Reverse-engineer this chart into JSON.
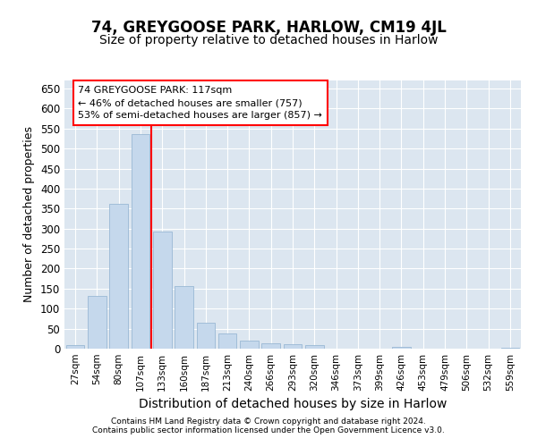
{
  "title1": "74, GREYGOOSE PARK, HARLOW, CM19 4JL",
  "title2": "Size of property relative to detached houses in Harlow",
  "xlabel": "Distribution of detached houses by size in Harlow",
  "ylabel": "Number of detached properties",
  "categories": [
    "27sqm",
    "54sqm",
    "80sqm",
    "107sqm",
    "133sqm",
    "160sqm",
    "187sqm",
    "213sqm",
    "240sqm",
    "266sqm",
    "293sqm",
    "320sqm",
    "346sqm",
    "373sqm",
    "399sqm",
    "426sqm",
    "453sqm",
    "479sqm",
    "506sqm",
    "532sqm",
    "559sqm"
  ],
  "values": [
    10,
    132,
    362,
    535,
    293,
    157,
    65,
    38,
    20,
    14,
    12,
    8,
    0,
    0,
    0,
    4,
    0,
    0,
    0,
    0,
    3
  ],
  "bar_color": "#c5d8ec",
  "bar_edge_color": "#9ab8d4",
  "vline_color": "red",
  "vline_x_index": 3.5,
  "annotation_title": "74 GREYGOOSE PARK: 117sqm",
  "annotation_line1": "← 46% of detached houses are smaller (757)",
  "annotation_line2": "53% of semi-detached houses are larger (857) →",
  "annotation_box_color": "white",
  "annotation_box_edge": "red",
  "ylim": [
    0,
    670
  ],
  "yticks": [
    0,
    50,
    100,
    150,
    200,
    250,
    300,
    350,
    400,
    450,
    500,
    550,
    600,
    650
  ],
  "footer1": "Contains HM Land Registry data © Crown copyright and database right 2024.",
  "footer2": "Contains public sector information licensed under the Open Government Licence v3.0.",
  "grid_color": "#ffffff",
  "background_color": "#dce6f0",
  "title1_fontsize": 12,
  "title2_fontsize": 10,
  "xlabel_fontsize": 10,
  "ylabel_fontsize": 9
}
